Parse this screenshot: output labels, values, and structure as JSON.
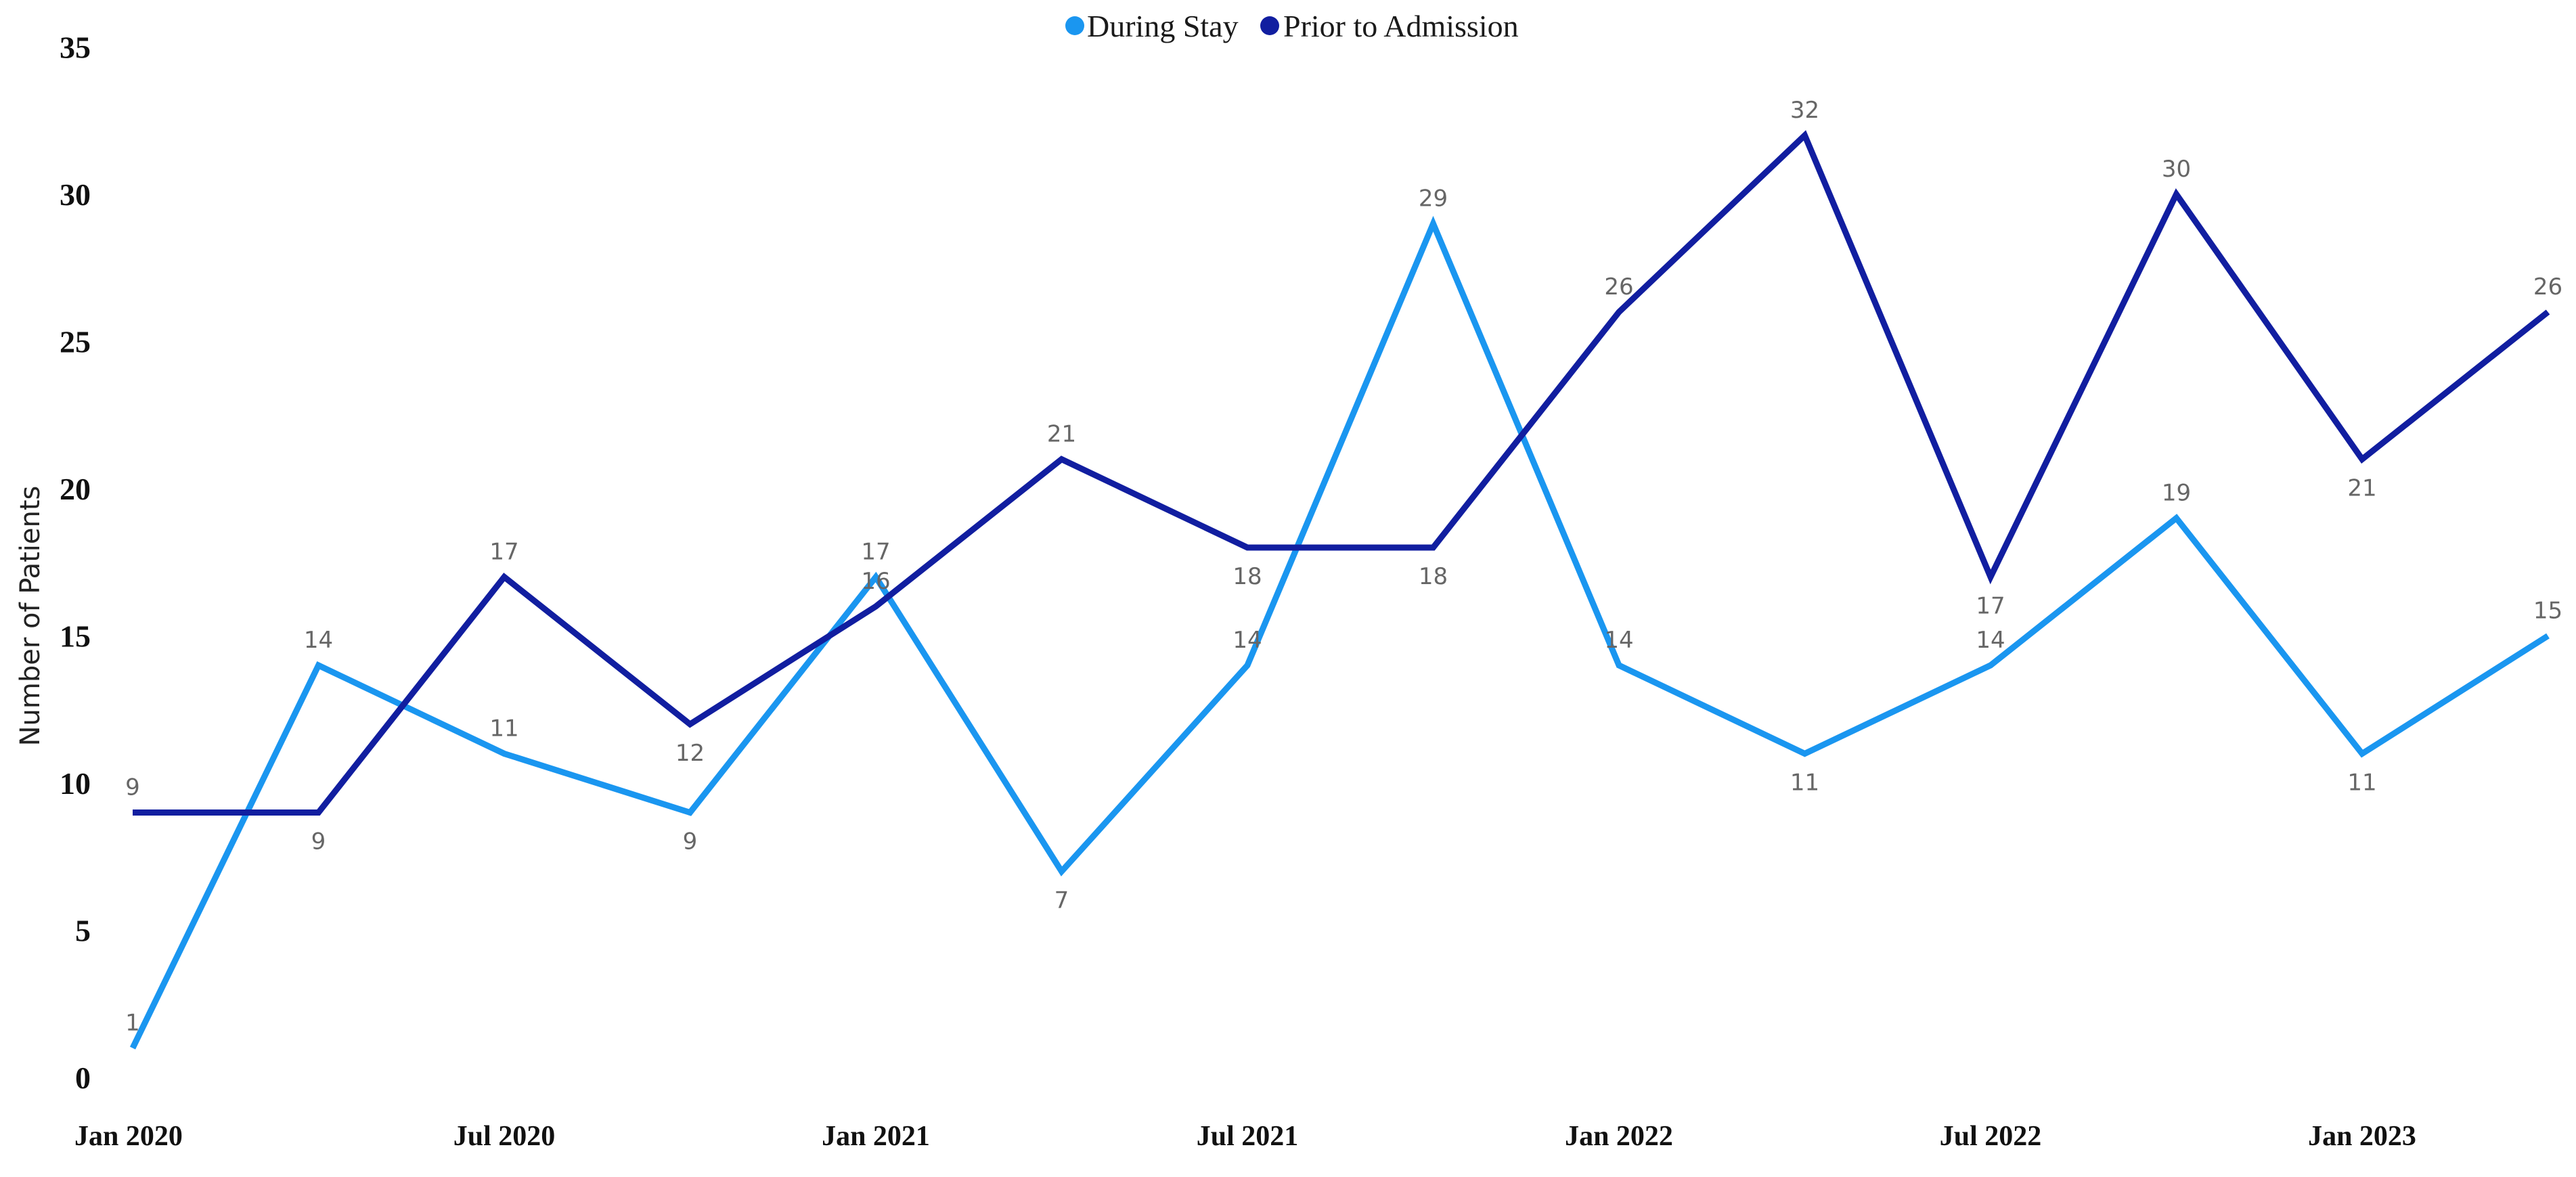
{
  "chart_data": {
    "type": "line",
    "title": "",
    "xlabel": "",
    "ylabel": "Number of Patients",
    "ylim": [
      0,
      35
    ],
    "yticks": [
      "0",
      "5",
      "10",
      "15",
      "20",
      "25",
      "30",
      "35"
    ],
    "x_tick_labels": [
      "Jan 2020",
      "Jul 2020",
      "Jan 2021",
      "Jul 2021",
      "Jan 2022",
      "Jul 2022",
      "Jan 2023"
    ],
    "x": [
      "Jan 2020",
      "Apr 2020",
      "Jul 2020",
      "Oct 2020",
      "Jan 2021",
      "Apr 2021",
      "Jul 2021",
      "Oct 2021",
      "Jan 2022",
      "Apr 2022",
      "Jul 2022",
      "Oct 2022",
      "Jan 2023",
      "Apr 2023"
    ],
    "grid": false,
    "legend_position": "top-center",
    "series": [
      {
        "name": "During Stay",
        "color": "#1a96f0",
        "values": [
          1,
          14,
          11,
          9,
          17,
          7,
          14,
          29,
          14,
          11,
          14,
          19,
          11,
          15
        ]
      },
      {
        "name": "Prior to Admission",
        "color": "#111ea0",
        "values": [
          9,
          9,
          17,
          12,
          16,
          21,
          18,
          18,
          26,
          32,
          17,
          30,
          21,
          26
        ]
      }
    ]
  }
}
